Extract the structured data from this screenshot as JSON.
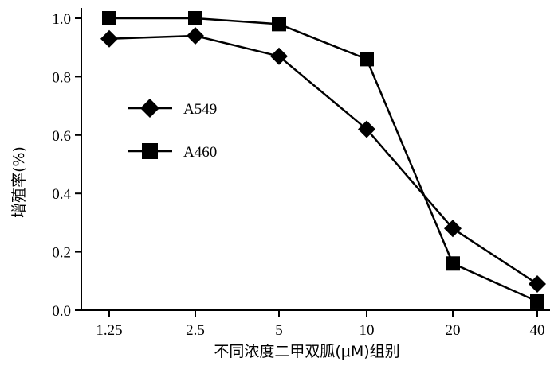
{
  "chart_data": {
    "type": "line",
    "xlabel": "不同浓度二甲双胍(μM)组别",
    "ylabel": "增殖率(%)",
    "categories": [
      "1.25",
      "2.5",
      "5",
      "10",
      "20",
      "40"
    ],
    "ylim": [
      0,
      1.0
    ],
    "yticks": [
      "0.0",
      "0.2",
      "0.4",
      "0.6",
      "0.8",
      "1.0"
    ],
    "grid": false,
    "legend_position": "upper-left",
    "series": [
      {
        "name": "A549",
        "marker": "diamond",
        "color": "#000000",
        "values": [
          0.93,
          0.94,
          0.87,
          0.62,
          0.28,
          0.09
        ]
      },
      {
        "name": "A460",
        "marker": "square",
        "color": "#000000",
        "values": [
          1.0,
          1.0,
          0.98,
          0.86,
          0.16,
          0.03
        ]
      }
    ]
  }
}
